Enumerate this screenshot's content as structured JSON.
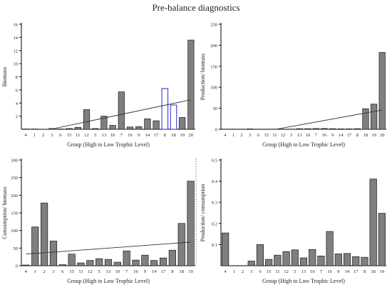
{
  "figure_title": "Pre-balance diagnostics",
  "colors": {
    "bar_fill": "#7f7f7f",
    "bar_stroke": "#1a1a1a",
    "highlight_stroke": "#3a3ad6",
    "axis": "#000000",
    "trend": "#333333"
  },
  "chart_data": [
    {
      "type": "bar",
      "panel": "top-left",
      "xlabel": "Group (High to Low Trophic Level)",
      "ylabel": "Biomass",
      "categories": [
        "4",
        "1",
        "2",
        "3",
        "6",
        "15",
        "11",
        "12",
        "5",
        "13",
        "10",
        "7",
        "16",
        "9",
        "14",
        "17",
        "8",
        "18",
        "19",
        "20"
      ],
      "values": [
        0.05,
        0.05,
        0.02,
        0.12,
        0.05,
        0.12,
        0.3,
        3.0,
        0.12,
        2.0,
        0.6,
        5.7,
        0.35,
        0.4,
        1.6,
        1.3,
        6.2,
        3.7,
        1.8,
        13.6
      ],
      "highlighted": [
        "8",
        "18"
      ],
      "ylim": [
        0,
        16
      ],
      "yticks": [
        2,
        4,
        6,
        8,
        10,
        12,
        14,
        16
      ],
      "trendline": {
        "start": -0.8,
        "end": 4.5
      },
      "grid": false
    },
    {
      "type": "bar",
      "panel": "top-right",
      "xlabel": "Group (High to Low Trophic Level)",
      "ylabel": "Production/ biomass",
      "categories": [
        "4",
        "1",
        "2",
        "3",
        "6",
        "15",
        "11",
        "12",
        "5",
        "13",
        "10",
        "7",
        "16",
        "9",
        "14",
        "17",
        "8",
        "18",
        "19",
        "20"
      ],
      "values": [
        0.5,
        0.5,
        0.5,
        1.0,
        0.5,
        0.5,
        0.5,
        0.5,
        0.5,
        1.5,
        1.5,
        2.0,
        2.0,
        1.5,
        1.0,
        1.0,
        1.5,
        49.0,
        60.0,
        183.0
      ],
      "ylim": [
        0,
        250
      ],
      "yticks": [
        0,
        50,
        100,
        150,
        200,
        250
      ],
      "trendline": {
        "start": -22,
        "end": 46
      },
      "grid": false
    },
    {
      "type": "bar",
      "panel": "bottom-left",
      "xlabel": "Group (High to Low Trophic Level)",
      "ylabel": "Consumption/ biomass",
      "categories": [
        "4",
        "1",
        "2",
        "3",
        "6",
        "15",
        "11",
        "12",
        "5",
        "13",
        "10",
        "7",
        "16",
        "9",
        "14",
        "17",
        "8",
        "18",
        "19"
      ],
      "values": [
        2,
        110,
        178,
        70,
        3,
        33,
        8,
        15,
        20,
        18,
        10,
        42,
        16,
        30,
        15,
        22,
        44,
        120,
        240
      ],
      "ylim": [
        0,
        300
      ],
      "yticks": [
        0,
        50,
        100,
        150,
        200,
        250,
        300
      ],
      "trendline": {
        "start": 33,
        "end": 67
      },
      "grid": false
    },
    {
      "type": "bar",
      "panel": "bottom-right",
      "xlabel": "Group (High to Low Trophic Level)",
      "ylabel": "Production/ consumption",
      "categories": [
        "4",
        "1",
        "2",
        "3",
        "6",
        "15",
        "11",
        "12",
        "5",
        "13",
        "10",
        "7",
        "16",
        "9",
        "14",
        "17",
        "8",
        "18",
        "19"
      ],
      "values": [
        0.155,
        0.0,
        0.0,
        0.022,
        0.1,
        0.03,
        0.05,
        0.067,
        0.075,
        0.037,
        0.077,
        0.046,
        0.162,
        0.056,
        0.058,
        0.043,
        0.04,
        0.41,
        0.248
      ],
      "ylim": [
        0,
        0.5
      ],
      "yticks": [
        0.1,
        0.2,
        0.3,
        0.4,
        0.5
      ],
      "grid": false
    }
  ]
}
